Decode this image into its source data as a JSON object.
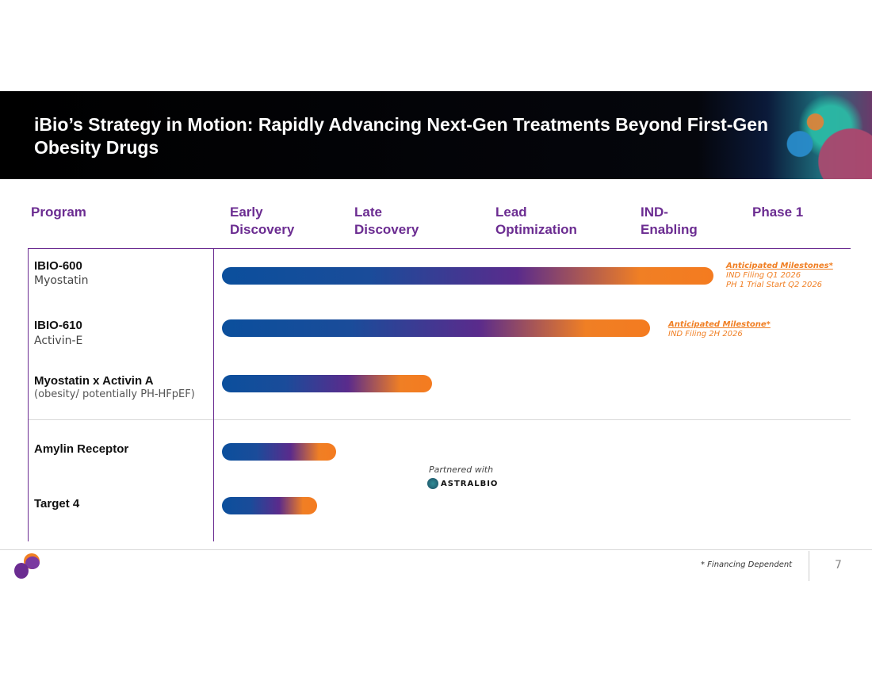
{
  "header": {
    "title": "iBio’s Strategy in Motion: Rapidly Advancing Next-Gen Treatments Beyond First-Gen Obesity Drugs"
  },
  "columns": [
    "Program",
    "Early Discovery",
    "Late Discovery",
    "Lead Optimization",
    "IND-Enabling",
    "Phase 1"
  ],
  "col_lines": [
    [
      "Program"
    ],
    [
      "Early",
      "Discovery"
    ],
    [
      "Late",
      "Discovery"
    ],
    [
      "Lead",
      "Optimization"
    ],
    [
      "IND-",
      "Enabling"
    ],
    [
      "Phase 1"
    ]
  ],
  "programs": [
    {
      "name": "IBIO-600",
      "sub": "Myostatin",
      "progress": 0.827
    },
    {
      "name": "IBIO-610",
      "sub": "Activin-E",
      "progress": 0.72
    },
    {
      "name": "Myostatin x Activin A",
      "sub": "(obesity/ potentially PH-HFpEF)",
      "progress": 0.353
    },
    {
      "name": "Amylin Receptor",
      "sub": "",
      "progress": 0.192
    },
    {
      "name": "Target 4",
      "sub": "",
      "progress": 0.16
    }
  ],
  "milestones": [
    {
      "title": "Anticipated Milestones*",
      "lines": [
        "IND Filing Q1 2026",
        "PH 1 Trial Start Q2 2026"
      ]
    },
    {
      "title": "Anticipated Milestone*",
      "lines": [
        "IND Filing 2H 2026"
      ]
    }
  ],
  "partner": {
    "label": "Partnered with",
    "logo_text": "ASTRALBIO"
  },
  "footer": {
    "note": "* Financing Dependent",
    "page": "7"
  },
  "colors": {
    "purple": "#6b2c91",
    "orange": "#f07f24",
    "blue": "#0b4f9c"
  }
}
